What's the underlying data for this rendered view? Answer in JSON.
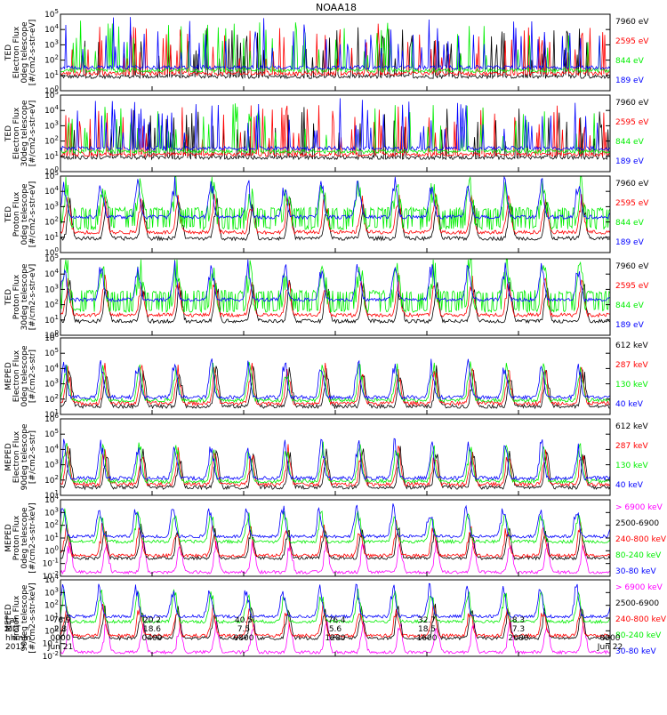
{
  "title": "NOAA18",
  "colors": {
    "black": "#000000",
    "red": "#ff0000",
    "green": "#00ee00",
    "blue": "#0000ff",
    "magenta": "#ff00ff"
  },
  "chart_data": {
    "type": "line",
    "panels": [
      {
        "id": "ted-e-0",
        "ylabel": [
          "TED",
          "Electron Flux",
          "0deg telescope",
          "[#/cm2-s-str-eV]"
        ],
        "ticks": [
          "10^0",
          "10^1",
          "10^2",
          "10^3",
          "10^4",
          "10^5"
        ],
        "yexp": [
          0,
          5
        ],
        "legend": [
          {
            "label": "7960 eV",
            "color": "#000000"
          },
          {
            "label": "2595 eV",
            "color": "#ff0000"
          },
          {
            "label": "844 eV",
            "color": "#00ee00"
          },
          {
            "label": "189 eV",
            "color": "#0000ff"
          }
        ]
      },
      {
        "id": "ted-e-30",
        "ylabel": [
          "TED",
          "Electron Flux",
          "30deg telescope",
          "[#/cm2-s-str-eV]"
        ],
        "ticks": [
          "10^0",
          "10^1",
          "10^2",
          "10^3",
          "10^4",
          "10^5"
        ],
        "yexp": [
          0,
          5
        ],
        "legend": [
          {
            "label": "7960 eV",
            "color": "#000000"
          },
          {
            "label": "2595 eV",
            "color": "#ff0000"
          },
          {
            "label": "844 eV",
            "color": "#00ee00"
          },
          {
            "label": "189 eV",
            "color": "#0000ff"
          }
        ]
      },
      {
        "id": "ted-p-0",
        "ylabel": [
          "TED",
          "Proton Flux",
          "0deg telescope",
          "[#/cm2-s-str-eV]"
        ],
        "ticks": [
          "10^0",
          "10^1",
          "10^2",
          "10^3",
          "10^4",
          "10^5"
        ],
        "yexp": [
          0,
          5
        ],
        "legend": [
          {
            "label": "7960 eV",
            "color": "#000000"
          },
          {
            "label": "2595 eV",
            "color": "#ff0000"
          },
          {
            "label": "844 eV",
            "color": "#00ee00"
          },
          {
            "label": "189 eV",
            "color": "#0000ff"
          }
        ]
      },
      {
        "id": "ted-p-30",
        "ylabel": [
          "TED",
          "Proton Flux",
          "30deg telescope",
          "[#/cm2-s-str-eV]"
        ],
        "ticks": [
          "10^0",
          "10^1",
          "10^2",
          "10^3",
          "10^4",
          "10^5"
        ],
        "yexp": [
          0,
          5
        ],
        "legend": [
          {
            "label": "7960 eV",
            "color": "#000000"
          },
          {
            "label": "2595 eV",
            "color": "#ff0000"
          },
          {
            "label": "844 eV",
            "color": "#00ee00"
          },
          {
            "label": "189 eV",
            "color": "#0000ff"
          }
        ]
      },
      {
        "id": "meped-e-0",
        "ylabel": [
          "MEPED",
          "Electron Flux",
          "0deg telescope",
          "[#/cm2-s-str]"
        ],
        "ticks": [
          "10^1",
          "10^2",
          "10^3",
          "10^4",
          "10^5",
          "10^6"
        ],
        "yexp": [
          1,
          6
        ],
        "legend": [
          {
            "label": "612 keV",
            "color": "#000000"
          },
          {
            "label": "287 keV",
            "color": "#ff0000"
          },
          {
            "label": "130 keV",
            "color": "#00ee00"
          },
          {
            "label": "40 keV",
            "color": "#0000ff"
          }
        ]
      },
      {
        "id": "meped-e-90",
        "ylabel": [
          "MEPED",
          "Electron Flux",
          "90deg telescope",
          "[#/cm2-s-str]"
        ],
        "ticks": [
          "10^1",
          "10^2",
          "10^3",
          "10^4",
          "10^5",
          "10^6"
        ],
        "yexp": [
          1,
          6
        ],
        "legend": [
          {
            "label": "612 keV",
            "color": "#000000"
          },
          {
            "label": "287 keV",
            "color": "#ff0000"
          },
          {
            "label": "130 keV",
            "color": "#00ee00"
          },
          {
            "label": "40 keV",
            "color": "#0000ff"
          }
        ]
      },
      {
        "id": "meped-p-0",
        "ylabel": [
          "MEPED",
          "Proton Flux",
          "0deg telescope",
          "[#/cm2-s-str-keV]"
        ],
        "ticks": [
          "10^-2",
          "10^-1",
          "10^0",
          "10^1",
          "10^2",
          "10^3",
          "10^4"
        ],
        "yexp": [
          -2,
          4
        ],
        "legend": [
          {
            "label": "> 6900 keV",
            "color": "#ff00ff"
          },
          {
            "label": "2500-6900",
            "color": "#000000"
          },
          {
            "label": "240-800 keV",
            "color": "#ff0000"
          },
          {
            "label": "80-240 keV",
            "color": "#00ee00"
          },
          {
            "label": "30-80 keV",
            "color": "#0000ff"
          }
        ]
      },
      {
        "id": "meped-p-90",
        "ylabel": [
          "MEPED",
          "Proton Flux",
          "90deg telescope",
          "[#/cm2-s-str-keV]"
        ],
        "ticks": [
          "10^-2",
          "10^-1",
          "10^0",
          "10^1",
          "10^2",
          "10^3",
          "10^4"
        ],
        "yexp": [
          -2,
          4
        ],
        "legend": [
          {
            "label": "> 6900 keV",
            "color": "#ff00ff"
          },
          {
            "label": "2500-6900",
            "color": "#000000"
          },
          {
            "label": "240-800 keV",
            "color": "#ff0000"
          },
          {
            "label": "80-240 keV",
            "color": "#00ee00"
          },
          {
            "label": "30-80 keV",
            "color": "#0000ff"
          }
        ]
      }
    ],
    "xaxis": {
      "range_hours": [
        0,
        24
      ],
      "rows": [
        {
          "label": "Lat",
          "values": [
            "-76.9",
            "20.2",
            "40.5",
            "-76.4",
            "32.7",
            "8.3",
            ""
          ]
        },
        {
          "label": "MLT",
          "values": [
            "2.8",
            "18.6",
            "7.5",
            "5.6",
            "18.5",
            "7.3",
            ""
          ]
        },
        {
          "label": "hhmm",
          "values": [
            "0000",
            "0400",
            "0800",
            "1200",
            "1600",
            "2000",
            "0000"
          ]
        },
        {
          "label": "2017",
          "values": [
            "Jun 21",
            "",
            "",
            "",
            "",
            "",
            "Jun 22"
          ]
        }
      ],
      "tick_hours": [
        0,
        4,
        8,
        12,
        16,
        20,
        24
      ]
    }
  }
}
